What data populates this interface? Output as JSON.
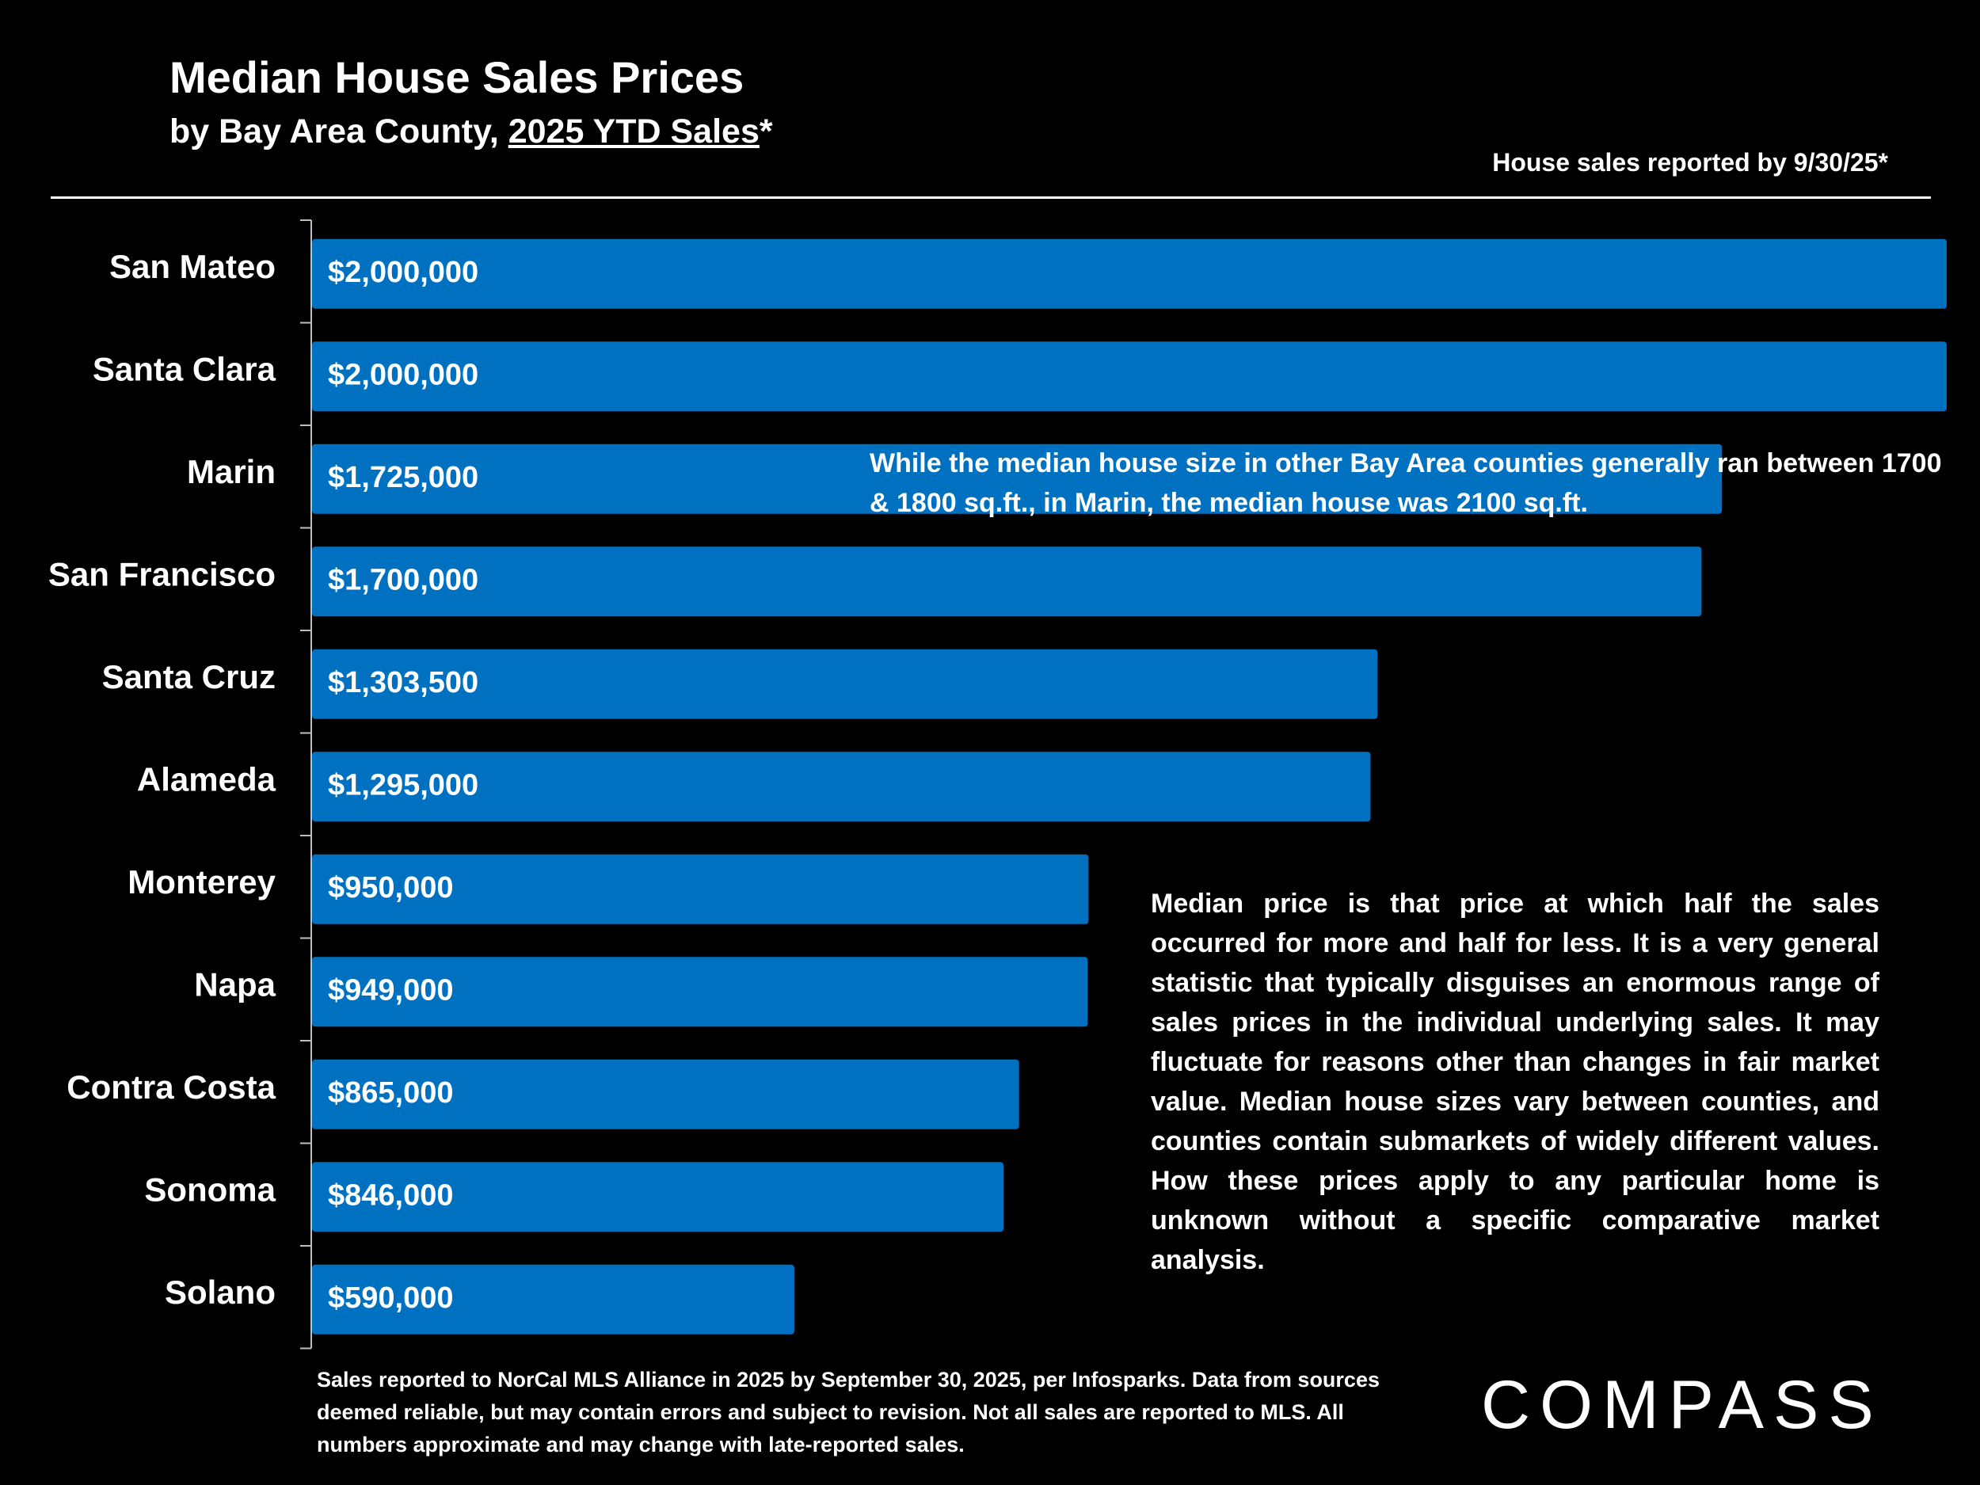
{
  "header": {
    "title": "Median House Sales Prices",
    "subtitle_prefix": "by Bay Area County, ",
    "subtitle_emphasis": "2025 YTD Sales",
    "subtitle_suffix": "*",
    "reported_note": "House sales reported by 9/30/25*"
  },
  "chart_data": {
    "type": "bar",
    "orientation": "horizontal",
    "title": "Median House Sales Prices",
    "subtitle": "by Bay Area County, 2025 YTD Sales*",
    "xlabel": "",
    "ylabel": "",
    "xlim": [
      0,
      2000000
    ],
    "grid": false,
    "categories": [
      "San Mateo",
      "Santa Clara",
      "Marin",
      "San Francisco",
      "Santa Cruz",
      "Alameda",
      "Monterey",
      "Napa",
      "Contra Costa",
      "Sonoma",
      "Solano"
    ],
    "values": [
      2000000,
      2000000,
      1725000,
      1700000,
      1303500,
      1295000,
      950000,
      949000,
      865000,
      846000,
      590000
    ],
    "value_labels": [
      "$2,000,000",
      "$2,000,000",
      "$1,725,000",
      "$1,700,000",
      "$1,303,500",
      "$1,295,000",
      "$950,000",
      "$949,000",
      "$865,000",
      "$846,000",
      "$590,000"
    ],
    "bar_color": "#0070C0"
  },
  "annotations": {
    "marin": "While the median house size in other Bay Area counties generally ran between 1700 & 1800 sq.ft., in Marin, the median house was 2100 sq.ft.",
    "median": "Median price is that price at which half the sales occurred for more and half for less. It is a very general statistic that typically disguises an enormous range of sales prices in the individual underlying sales. It may fluctuate for reasons other than changes in fair market value. Median house sizes vary between counties, and counties contain submarkets of widely different values. How these prices apply to any particular home is unknown without a specific comparative market analysis."
  },
  "footnote": "Sales reported to NorCal MLS Alliance in 2025 by September 30, 2025, per Infosparks. Data from sources deemed reliable, but may contain errors and subject to revision. Not all sales are reported to MLS. All numbers approximate and may change with late-reported sales.",
  "logo": "COMPASS"
}
